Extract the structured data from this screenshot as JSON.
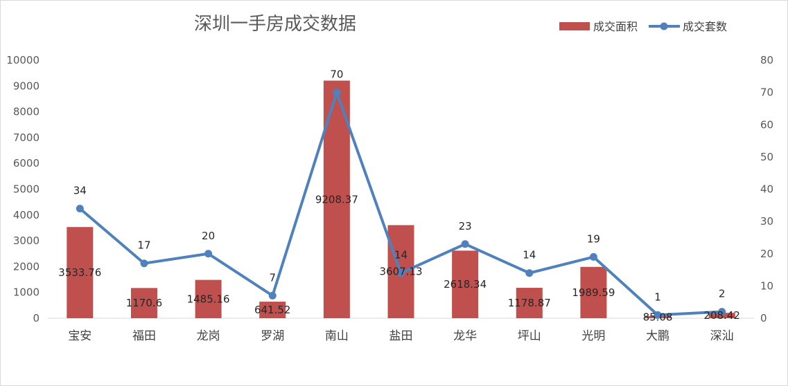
{
  "chart_data": {
    "type": "bar",
    "title": "深圳一手房成交数据",
    "categories": [
      "宝安",
      "福田",
      "龙岗",
      "罗湖",
      "南山",
      "盐田",
      "龙华",
      "坪山",
      "光明",
      "大鹏",
      "深汕"
    ],
    "series": [
      {
        "name": "成交面积",
        "type": "bar",
        "axis": "left",
        "color": "#c0504d",
        "values": [
          3533.76,
          1170.6,
          1485.16,
          641.52,
          9208.37,
          3607.13,
          2618.34,
          1178.87,
          1989.59,
          85.08,
          208.42
        ]
      },
      {
        "name": "成交套数",
        "type": "line",
        "axis": "right",
        "color": "#4f81bd",
        "values": [
          34,
          17,
          20,
          7,
          70,
          14,
          23,
          14,
          19,
          1,
          2
        ]
      }
    ],
    "y_left": {
      "min": 0,
      "max": 10000,
      "step": 1000
    },
    "y_right": {
      "min": 0,
      "max": 80,
      "step": 10
    },
    "grid": false,
    "legend_position": "top-right"
  }
}
